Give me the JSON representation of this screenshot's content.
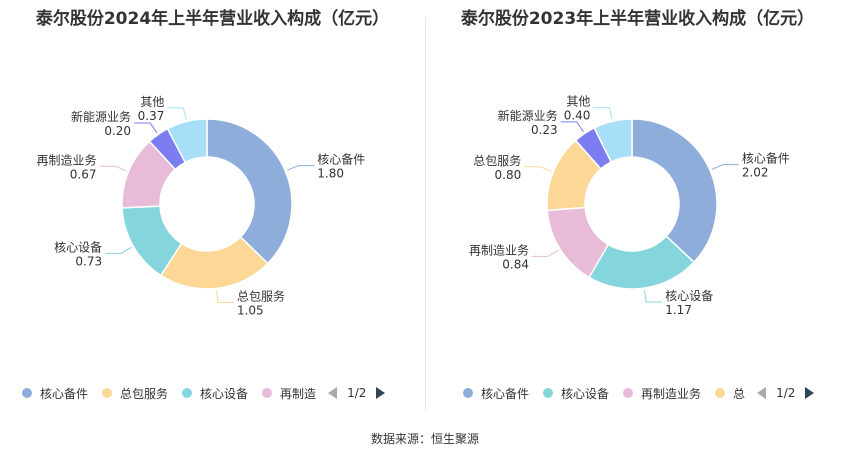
{
  "colors": {
    "核心备件": "#8eadda",
    "总包服务": "#fdd795",
    "核心设备": "#84d5dc",
    "再制造业务": "#e8bcd9",
    "新能源业务": "#7b7df0",
    "其他": "#a8dff8"
  },
  "chart_data": [
    {
      "type": "pie",
      "title": "泰尔股份2024年上半年营业收入构成（亿元）",
      "slices": [
        {
          "name": "核心备件",
          "value": 1.8
        },
        {
          "name": "总包服务",
          "value": 1.05
        },
        {
          "name": "核心设备",
          "value": 0.73
        },
        {
          "name": "再制造业务",
          "value": 0.67
        },
        {
          "name": "新能源业务",
          "value": 0.2
        },
        {
          "name": "其他",
          "value": 0.37
        }
      ],
      "legend": {
        "placement": "bottom",
        "items": [
          "核心备件",
          "总包服务",
          "核心设备",
          "再制造"
        ],
        "page": "1/2"
      }
    },
    {
      "type": "pie",
      "title": "泰尔股份2023年上半年营业收入构成（亿元）",
      "slices": [
        {
          "name": "核心备件",
          "value": 2.02
        },
        {
          "name": "核心设备",
          "value": 1.17
        },
        {
          "name": "再制造业务",
          "value": 0.84
        },
        {
          "name": "总包服务",
          "value": 0.8
        },
        {
          "name": "新能源业务",
          "value": 0.23
        },
        {
          "name": "其他",
          "value": 0.4
        }
      ],
      "legend": {
        "placement": "bottom",
        "items": [
          "核心备件",
          "核心设备",
          "再制造业务",
          "总"
        ],
        "page": "1/2"
      }
    }
  ],
  "source": "数据来源：恒生聚源"
}
